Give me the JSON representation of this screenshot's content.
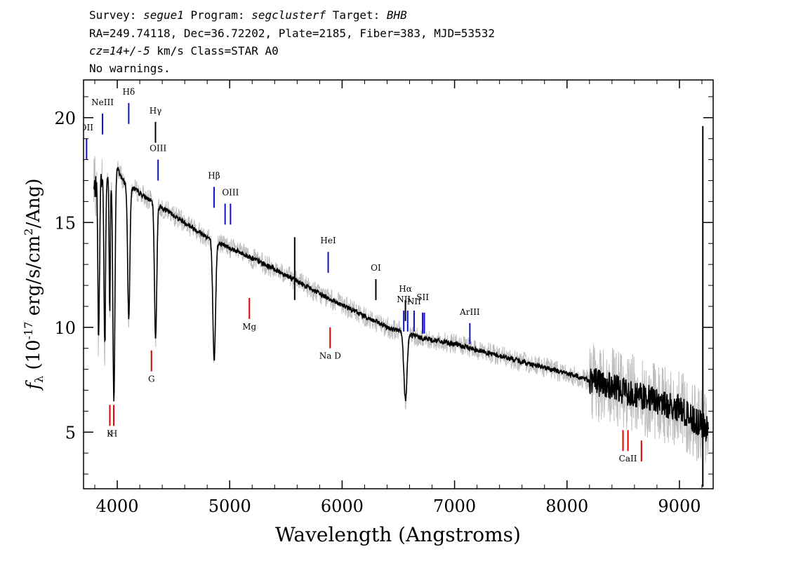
{
  "header": {
    "survey_label": "Survey: ",
    "survey": "segue1",
    "program_label": " Program: ",
    "program": "segclusterf",
    "target_label": " Target: ",
    "target": "BHB",
    "line2": "RA=249.74118, Dec=36.72202, Plate=2185, Fiber=383, MJD=53532",
    "cz_value": "cz=14+/-5",
    "cz_rest": " km/s Class=STAR A0",
    "warnings": "No warnings."
  },
  "chart_data": {
    "type": "line",
    "title": "",
    "xlabel": "Wavelength (Angstroms)",
    "ylabel_prefix": "f",
    "ylabel_sub": "λ",
    "ylabel_main": " (10",
    "ylabel_exp": "-17",
    "ylabel_rest": " erg/s/cm",
    "ylabel_exp2": "2",
    "ylabel_end": "/Ang)",
    "xlim": [
      3700,
      9300
    ],
    "ylim": [
      2.3,
      21.8
    ],
    "xticks": [
      4000,
      5000,
      6000,
      7000,
      8000,
      9000
    ],
    "xtick_labels": [
      "4000",
      "5000",
      "6000",
      "7000",
      "8000",
      "9000"
    ],
    "yticks": [
      5,
      10,
      15,
      20
    ],
    "ytick_labels": [
      "5",
      "10",
      "15",
      "20"
    ],
    "continuum": {
      "x": [
        3780,
        3850,
        3950,
        4000,
        4050,
        4150,
        4250,
        4400,
        4600,
        4800,
        5000,
        5200,
        5500,
        5800,
        6100,
        6400,
        6700,
        7000,
        7500,
        8000,
        8500,
        9000,
        9250
      ],
      "y": [
        16.5,
        17.0,
        17.2,
        17.6,
        17.0,
        16.6,
        16.2,
        15.7,
        15.0,
        14.3,
        13.8,
        13.3,
        12.5,
        11.6,
        10.8,
        10.0,
        9.5,
        9.2,
        8.5,
        7.8,
        7.0,
        6.1,
        5.1
      ]
    },
    "absorption_lines": [
      {
        "center": 3835,
        "depth": 7.5,
        "width": 7
      },
      {
        "center": 3889,
        "depth": 8.0,
        "width": 7
      },
      {
        "center": 3933,
        "depth": 6.5,
        "width": 5
      },
      {
        "center": 3970,
        "depth": 11.0,
        "width": 9
      },
      {
        "center": 4102,
        "depth": 6.3,
        "width": 10
      },
      {
        "center": 4341,
        "depth": 6.5,
        "width": 10
      },
      {
        "center": 4862,
        "depth": 5.8,
        "width": 12
      },
      {
        "center": 6563,
        "depth": 3.2,
        "width": 14
      }
    ],
    "spikes": [
      {
        "x": 5578,
        "y_min": 11.3,
        "y_max": 14.3
      },
      {
        "x": 9208,
        "y_min": 2.4,
        "y_max": 19.6
      }
    ],
    "emission_lines": [
      {
        "label": "OII",
        "x": 3727,
        "y_top": 19.0,
        "y_bottom": 18.0,
        "label_y": 19.4,
        "color": "#1010c8"
      },
      {
        "label": "NeIII",
        "x": 3869,
        "y_top": 20.2,
        "y_bottom": 19.2,
        "label_y": 20.6,
        "color": "#1010c8"
      },
      {
        "label": "Hδ",
        "x": 4102,
        "y_top": 20.7,
        "y_bottom": 19.7,
        "label_y": 21.1,
        "color": "#1010c8"
      },
      {
        "label": "Hγ",
        "x": 4340,
        "y_top": 19.8,
        "y_bottom": 18.8,
        "label_y": 20.2,
        "color": "#000000"
      },
      {
        "label": "OIII",
        "x": 4363,
        "y_top": 18.0,
        "y_bottom": 17.0,
        "label_y": 18.4,
        "color": "#1010c8"
      },
      {
        "label": "Hβ",
        "x": 4861,
        "y_top": 16.7,
        "y_bottom": 15.7,
        "label_y": 17.1,
        "color": "#1010c8"
      },
      {
        "label": "",
        "x": 4959,
        "y_top": 15.9,
        "y_bottom": 14.9,
        "label_y": 16.3,
        "color": "#1010c8"
      },
      {
        "label": "OIII",
        "x": 5007,
        "y_top": 15.9,
        "y_bottom": 14.9,
        "label_y": 16.3,
        "color": "#1010c8"
      },
      {
        "label": "HeI",
        "x": 5876,
        "y_top": 13.6,
        "y_bottom": 12.6,
        "label_y": 14.0,
        "color": "#1010c8"
      },
      {
        "label": "OI",
        "x": 6300,
        "y_top": 12.3,
        "y_bottom": 11.3,
        "label_y": 12.7,
        "color": "#000000"
      },
      {
        "label": "NII",
        "x": 6548,
        "y_top": 10.8,
        "y_bottom": 9.8,
        "label_y": 11.2,
        "color": "#1010c8"
      },
      {
        "label": "Hα",
        "x": 6563,
        "y_top": 11.3,
        "y_bottom": 10.3,
        "label_y": 11.7,
        "color": "#000000"
      },
      {
        "label": "",
        "x": 6583,
        "y_top": 10.8,
        "y_bottom": 9.8,
        "label_y": 11.2,
        "color": "#1010c8"
      },
      {
        "label": "NII",
        "x": 6640,
        "y_top": 10.8,
        "y_bottom": 9.8,
        "label_y": 11.1,
        "color": "#1010c8"
      },
      {
        "label": "SII",
        "x": 6716,
        "y_top": 10.7,
        "y_bottom": 9.7,
        "label_y": 11.3,
        "color": "#1010c8"
      },
      {
        "label": "",
        "x": 6731,
        "y_top": 10.7,
        "y_bottom": 9.7,
        "label_y": 11.3,
        "color": "#1010c8"
      },
      {
        "label": "ArIII",
        "x": 7136,
        "y_top": 10.2,
        "y_bottom": 9.2,
        "label_y": 10.6,
        "color": "#1010c8"
      }
    ],
    "absorption_markers": [
      {
        "label": "G",
        "x": 4304,
        "y_top": 8.9,
        "y_bottom": 7.9,
        "label_y": 7.4,
        "color": "#e00000"
      },
      {
        "label": "Mg",
        "x": 5175,
        "y_top": 11.4,
        "y_bottom": 10.4,
        "label_y": 9.9,
        "color": "#e00000"
      },
      {
        "label": "Na D",
        "x": 5893,
        "y_top": 10.0,
        "y_bottom": 9.0,
        "label_y": 8.5,
        "color": "#e00000"
      },
      {
        "label": "K",
        "x": 3934,
        "y_top": 6.3,
        "y_bottom": 5.3,
        "label_y": 4.8,
        "color": "#e00000"
      },
      {
        "label": "H",
        "x": 3969,
        "y_top": 6.3,
        "y_bottom": 5.3,
        "label_y": 4.8,
        "color": "#e00000"
      },
      {
        "label": "",
        "x": 8498,
        "y_top": 5.1,
        "y_bottom": 4.1,
        "label_y": 3.6,
        "color": "#e00000"
      },
      {
        "label": "CaII",
        "x": 8542,
        "y_top": 5.1,
        "y_bottom": 4.1,
        "label_y": 3.6,
        "color": "#e00000"
      },
      {
        "label": "",
        "x": 8662,
        "y_top": 4.6,
        "y_bottom": 3.6,
        "label_y": 3.1,
        "color": "#e00000"
      }
    ],
    "colors": {
      "spectrum": "#000000",
      "noise": "#bdbdbd",
      "emission": "#1010c8",
      "absorption": "#e00000",
      "axes": "#000000"
    }
  }
}
